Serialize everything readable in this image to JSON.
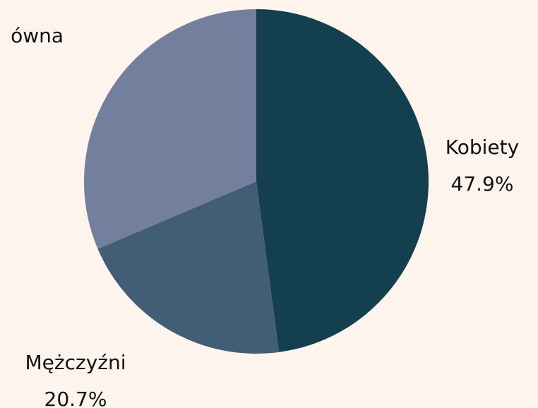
{
  "chart_data": {
    "type": "pie",
    "categories": [
      "Kobiety",
      "Mężczyźni",
      "ówna"
    ],
    "values": [
      47.9,
      20.7,
      31.4
    ],
    "value_labels": [
      "47.9%",
      "20.7%",
      null
    ],
    "colors": [
      "#133f4f",
      "#425e76",
      "#737f9d"
    ]
  }
}
